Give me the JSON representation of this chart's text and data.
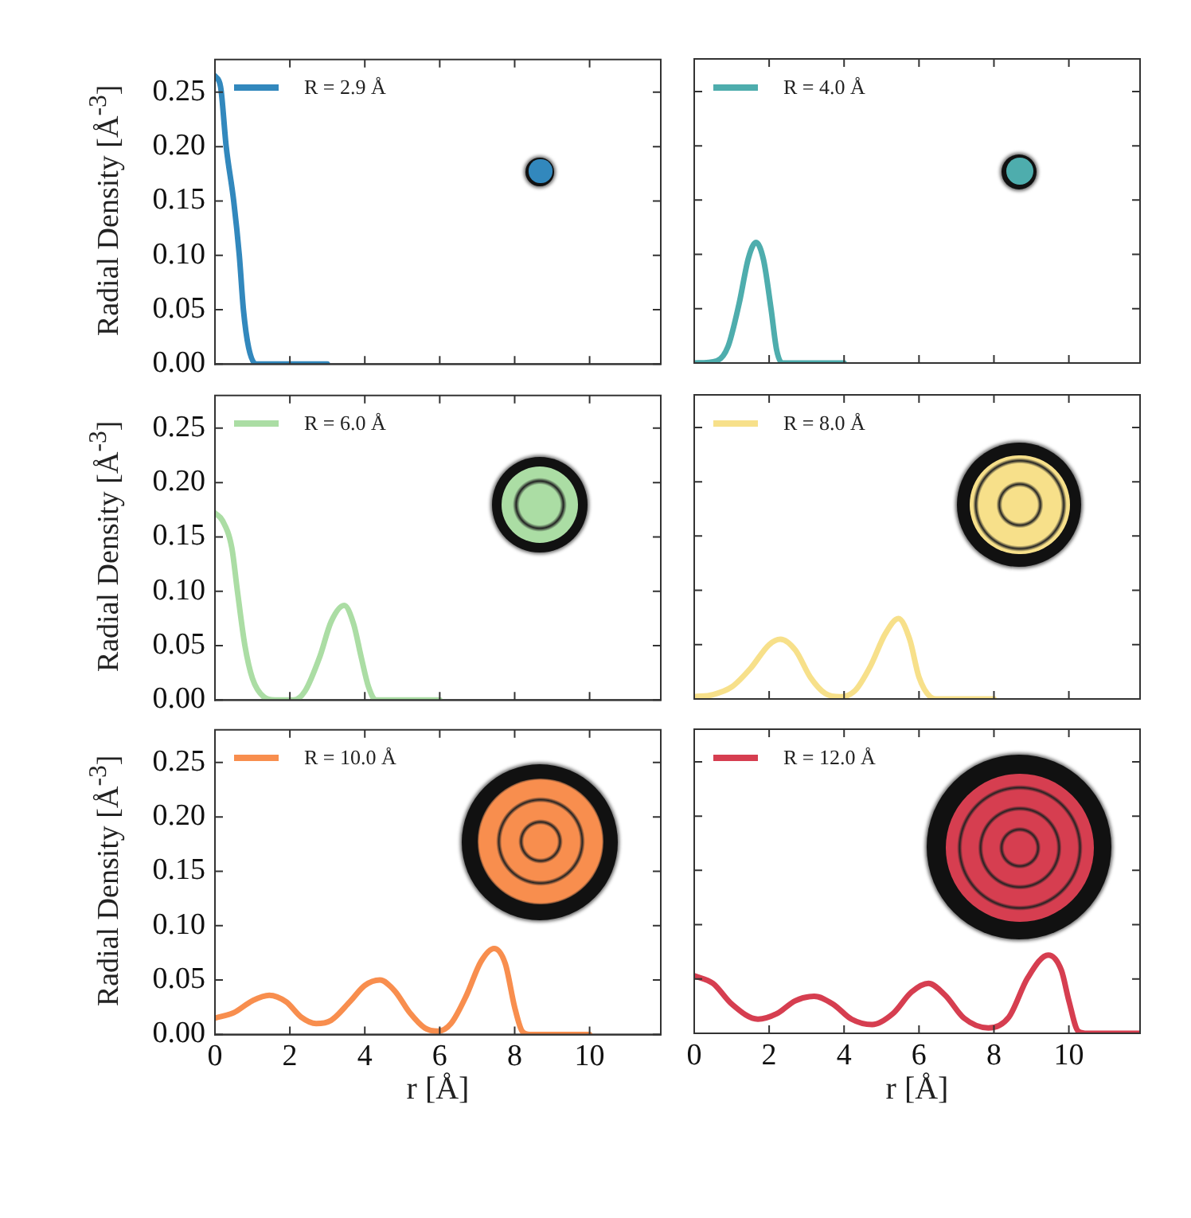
{
  "chart_data": [
    {
      "type": "line",
      "ylabel": "Radial Density [Å$^{-3}$]",
      "xlim": [
        0,
        11.9
      ],
      "xticks": [
        0,
        2,
        4,
        6,
        8,
        10
      ],
      "ylim": [
        0,
        0.28
      ],
      "yticks": [
        {
          "value": 0,
          "label": "0.00"
        },
        {
          "value": 0.05,
          "label": "0.05"
        },
        {
          "value": 0.1,
          "label": "0.10"
        },
        {
          "value": 0.15,
          "label": "0.15"
        },
        {
          "value": 0.2,
          "label": "0.20"
        },
        {
          "value": 0.25,
          "label": "0.25"
        }
      ],
      "tick_labels": "y",
      "legend": "top left",
      "marker": "none",
      "grid": false,
      "series": [
        {
          "name": "R = 2.9 Å",
          "color": "#3288bd",
          "x": [
            0,
            0.15,
            0.3,
            0.5,
            0.65,
            0.76,
            0.9,
            1.1,
            3
          ],
          "values": [
            0.265,
            0.255,
            0.2,
            0.15,
            0.1,
            0.05,
            0.015,
            0,
            0
          ]
        }
      ]
    },
    {
      "type": "line",
      "xlim": [
        0,
        11.9
      ],
      "xticks": [
        0,
        2,
        4,
        6,
        8,
        10
      ],
      "ylim": [
        0,
        0.28
      ],
      "yticks": [
        0,
        0.05,
        0.1,
        0.15,
        0.2,
        0.25
      ],
      "tick_labels": false,
      "legend": "top left",
      "marker": "none",
      "grid": false,
      "series": [
        {
          "name": "R = 4.0 Å",
          "color": "#4eadad",
          "x": [
            0,
            0.6,
            0.9,
            1.2,
            1.45,
            1.65,
            1.85,
            2.05,
            2.2,
            2.35,
            4
          ],
          "values": [
            0,
            0.002,
            0.015,
            0.055,
            0.097,
            0.111,
            0.095,
            0.05,
            0.012,
            0,
            0
          ]
        }
      ]
    },
    {
      "type": "line",
      "ylabel": "Radial Density [Å$^{-3}$]",
      "xlim": [
        0,
        11.9
      ],
      "xticks": [
        0,
        2,
        4,
        6,
        8,
        10
      ],
      "ylim": [
        0,
        0.28
      ],
      "yticks": [
        {
          "value": 0,
          "label": "0.00"
        },
        {
          "value": 0.05,
          "label": "0.05"
        },
        {
          "value": 0.1,
          "label": "0.10"
        },
        {
          "value": 0.15,
          "label": "0.15"
        },
        {
          "value": 0.2,
          "label": "0.20"
        },
        {
          "value": 0.25,
          "label": "0.25"
        }
      ],
      "tick_labels": "y",
      "legend": "top left",
      "marker": "none",
      "grid": false,
      "series": [
        {
          "name": "R = 6.0 Å",
          "color": "#abdda4",
          "x": [
            0,
            0.2,
            0.45,
            0.6,
            0.8,
            1.0,
            1.3,
            1.6,
            2.1,
            2.4,
            2.8,
            3.1,
            3.45,
            3.7,
            3.9,
            4.1,
            4.3,
            6
          ],
          "values": [
            0.172,
            0.165,
            0.14,
            0.1,
            0.05,
            0.02,
            0.003,
            0,
            0,
            0.008,
            0.04,
            0.072,
            0.087,
            0.07,
            0.04,
            0.012,
            0,
            0
          ]
        }
      ]
    },
    {
      "type": "line",
      "xlim": [
        0,
        11.9
      ],
      "xticks": [
        0,
        2,
        4,
        6,
        8,
        10
      ],
      "ylim": [
        0,
        0.28
      ],
      "yticks": [
        0,
        0.05,
        0.1,
        0.15,
        0.2,
        0.25
      ],
      "tick_labels": false,
      "legend": "top left",
      "marker": "none",
      "grid": false,
      "series": [
        {
          "name": "R = 8.0 Å",
          "color": "#f7e08a",
          "x": [
            0,
            0.5,
            1.0,
            1.5,
            2.0,
            2.3,
            2.7,
            3.1,
            3.5,
            3.9,
            4.3,
            4.7,
            5.1,
            5.45,
            5.75,
            6.0,
            6.3,
            6.5,
            8
          ],
          "values": [
            0.002,
            0.004,
            0.011,
            0.028,
            0.05,
            0.055,
            0.045,
            0.02,
            0.005,
            0.002,
            0.008,
            0.03,
            0.06,
            0.074,
            0.055,
            0.02,
            0.002,
            0,
            0
          ]
        }
      ]
    },
    {
      "type": "line",
      "xlabel": "r [Å]",
      "ylabel": "Radial Density [Å$^{-3}$]",
      "xlim": [
        0,
        11.9
      ],
      "xticks": [
        0,
        2,
        4,
        6,
        8,
        10
      ],
      "ylim": [
        0,
        0.28
      ],
      "yticks": [
        {
          "value": 0,
          "label": "0.00"
        },
        {
          "value": 0.05,
          "label": "0.05"
        },
        {
          "value": 0.1,
          "label": "0.10"
        },
        {
          "value": 0.15,
          "label": "0.15"
        },
        {
          "value": 0.2,
          "label": "0.20"
        },
        {
          "value": 0.25,
          "label": "0.25"
        }
      ],
      "legend": "top left",
      "marker": "none",
      "grid": false,
      "series": [
        {
          "name": "R = 10.0 Å",
          "color": "#f88e4e",
          "x": [
            0,
            0.5,
            1.0,
            1.45,
            1.9,
            2.3,
            2.7,
            3.1,
            3.6,
            4.0,
            4.4,
            4.8,
            5.2,
            5.6,
            5.95,
            6.3,
            6.7,
            7.1,
            7.45,
            7.75,
            8.0,
            8.2,
            8.4,
            10
          ],
          "values": [
            0.015,
            0.02,
            0.031,
            0.036,
            0.03,
            0.016,
            0.01,
            0.013,
            0.03,
            0.045,
            0.05,
            0.04,
            0.02,
            0.006,
            0.003,
            0.01,
            0.035,
            0.067,
            0.079,
            0.065,
            0.025,
            0.003,
            0,
            0
          ]
        }
      ]
    },
    {
      "type": "line",
      "xlabel": "r [Å]",
      "xlim": [
        0,
        11.9
      ],
      "xticks": [
        0,
        2,
        4,
        6,
        8,
        10
      ],
      "ylim": [
        0,
        0.28
      ],
      "yticks": [
        0,
        0.05,
        0.1,
        0.15,
        0.2,
        0.25
      ],
      "tick_labels": "x",
      "legend": "top left",
      "marker": "none",
      "grid": false,
      "series": [
        {
          "name": "R = 12.0 Å",
          "color": "#d63e50",
          "x": [
            0,
            0.5,
            1.0,
            1.7,
            2.2,
            2.7,
            3.2,
            3.7,
            4.2,
            4.75,
            5.3,
            5.8,
            6.25,
            6.7,
            7.2,
            7.85,
            8.4,
            8.9,
            9.45,
            9.8,
            10.0,
            10.25,
            10.5,
            11.9
          ],
          "values": [
            0.053,
            0.046,
            0.027,
            0.013,
            0.018,
            0.03,
            0.034,
            0.027,
            0.013,
            0.008,
            0.018,
            0.038,
            0.046,
            0.035,
            0.014,
            0.005,
            0.015,
            0.051,
            0.072,
            0.058,
            0.03,
            0.002,
            0,
            0
          ]
        }
      ]
    }
  ]
}
